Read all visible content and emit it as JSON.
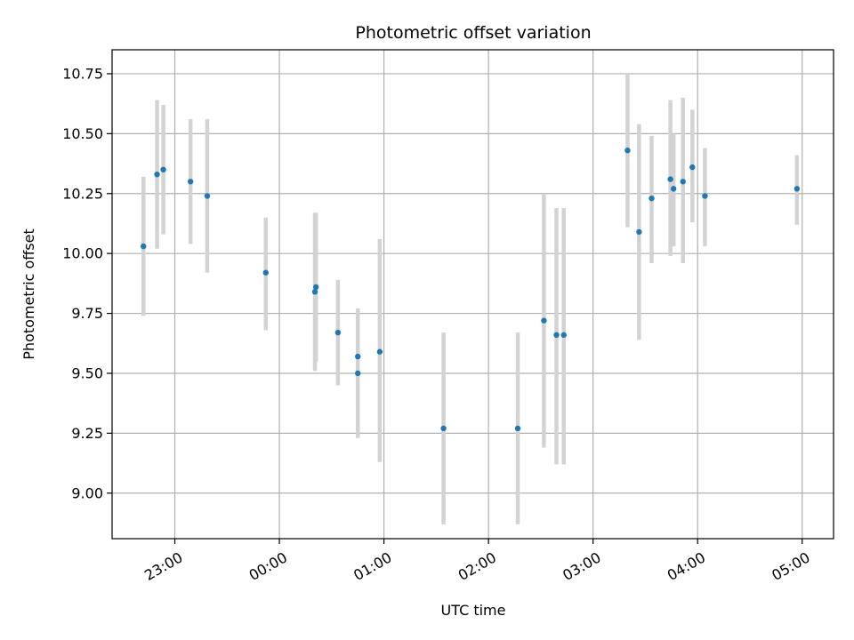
{
  "chart_data": {
    "type": "scatter",
    "title": "Photometric offset variation",
    "xlabel": "UTC time",
    "ylabel": "Photometric offset",
    "x_unit": "hours (UTC, continuing past midnight)",
    "xlim": [
      22.4,
      29.3
    ],
    "ylim": [
      8.81,
      10.85
    ],
    "grid": true,
    "colors": {
      "point": "#1f77b4",
      "errorbar": "#d3d3d3",
      "grid": "#b0b0b0"
    },
    "x_ticks": [
      {
        "value": 23,
        "label": "23:00"
      },
      {
        "value": 24,
        "label": "00:00"
      },
      {
        "value": 25,
        "label": "01:00"
      },
      {
        "value": 26,
        "label": "02:00"
      },
      {
        "value": 27,
        "label": "03:00"
      },
      {
        "value": 28,
        "label": "04:00"
      },
      {
        "value": 29,
        "label": "05:00"
      }
    ],
    "y_ticks": [
      {
        "value": 9.0,
        "label": "9.00"
      },
      {
        "value": 9.25,
        "label": "9.25"
      },
      {
        "value": 9.5,
        "label": "9.50"
      },
      {
        "value": 9.75,
        "label": "9.75"
      },
      {
        "value": 10.0,
        "label": "10.00"
      },
      {
        "value": 10.25,
        "label": "10.25"
      },
      {
        "value": 10.5,
        "label": "10.50"
      },
      {
        "value": 10.75,
        "label": "10.75"
      }
    ],
    "points": [
      {
        "x": 22.7,
        "y": 10.03,
        "lo": 9.74,
        "hi": 10.32
      },
      {
        "x": 22.83,
        "y": 10.33,
        "lo": 10.02,
        "hi": 10.64
      },
      {
        "x": 22.89,
        "y": 10.35,
        "lo": 10.08,
        "hi": 10.62
      },
      {
        "x": 23.15,
        "y": 10.3,
        "lo": 10.04,
        "hi": 10.56
      },
      {
        "x": 23.31,
        "y": 10.24,
        "lo": 9.92,
        "hi": 10.56
      },
      {
        "x": 23.87,
        "y": 9.92,
        "lo": 9.68,
        "hi": 10.15
      },
      {
        "x": 24.34,
        "y": 9.84,
        "lo": 9.51,
        "hi": 10.17
      },
      {
        "x": 24.35,
        "y": 9.86,
        "lo": 9.55,
        "hi": 10.17
      },
      {
        "x": 24.56,
        "y": 9.67,
        "lo": 9.45,
        "hi": 9.89
      },
      {
        "x": 24.75,
        "y": 9.57,
        "lo": 9.37,
        "hi": 9.77
      },
      {
        "x": 24.75,
        "y": 9.5,
        "lo": 9.23,
        "hi": 9.77
      },
      {
        "x": 24.96,
        "y": 9.59,
        "lo": 9.13,
        "hi": 10.06
      },
      {
        "x": 25.57,
        "y": 9.27,
        "lo": 8.87,
        "hi": 9.67
      },
      {
        "x": 26.28,
        "y": 9.27,
        "lo": 8.87,
        "hi": 9.67
      },
      {
        "x": 26.53,
        "y": 9.72,
        "lo": 9.19,
        "hi": 10.25
      },
      {
        "x": 26.65,
        "y": 9.66,
        "lo": 9.12,
        "hi": 10.19
      },
      {
        "x": 26.72,
        "y": 9.66,
        "lo": 9.12,
        "hi": 10.19
      },
      {
        "x": 27.33,
        "y": 10.43,
        "lo": 10.11,
        "hi": 10.75
      },
      {
        "x": 27.44,
        "y": 10.09,
        "lo": 9.64,
        "hi": 10.54
      },
      {
        "x": 27.56,
        "y": 10.23,
        "lo": 9.96,
        "hi": 10.49
      },
      {
        "x": 27.74,
        "y": 10.31,
        "lo": 9.99,
        "hi": 10.64
      },
      {
        "x": 27.77,
        "y": 10.27,
        "lo": 10.03,
        "hi": 10.5
      },
      {
        "x": 27.86,
        "y": 10.3,
        "lo": 9.96,
        "hi": 10.65
      },
      {
        "x": 27.95,
        "y": 10.36,
        "lo": 10.13,
        "hi": 10.6
      },
      {
        "x": 28.07,
        "y": 10.24,
        "lo": 10.03,
        "hi": 10.44
      },
      {
        "x": 28.95,
        "y": 10.27,
        "lo": 10.12,
        "hi": 10.41
      }
    ]
  }
}
